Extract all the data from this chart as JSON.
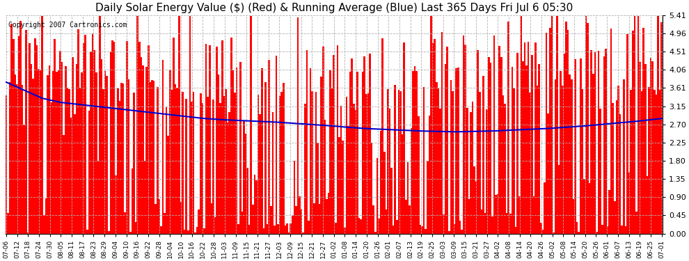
{
  "title": "Daily Solar Energy Value ($) (Red) & Running Average (Blue) Last 365 Days Fri Jul 6 05:30",
  "copyright": "Copyright 2007 Cartronics.com",
  "ylim": [
    0.0,
    5.41
  ],
  "yticks": [
    0.0,
    0.45,
    0.9,
    1.35,
    1.8,
    2.25,
    2.7,
    3.15,
    3.61,
    4.06,
    4.51,
    4.96,
    5.41
  ],
  "bar_color": "#ff0000",
  "avg_color": "#0000cc",
  "bg_color": "#ffffff",
  "grid_color": "#b0b0b0",
  "title_fontsize": 11,
  "copyright_fontsize": 7,
  "tick_labels": [
    "07-06",
    "07-12",
    "07-18",
    "07-24",
    "07-30",
    "08-05",
    "08-11",
    "08-17",
    "08-23",
    "08-29",
    "09-04",
    "09-10",
    "09-16",
    "09-22",
    "09-28",
    "10-04",
    "10-10",
    "10-16",
    "10-22",
    "10-28",
    "11-03",
    "11-09",
    "11-15",
    "11-21",
    "11-27",
    "12-03",
    "12-09",
    "12-15",
    "12-21",
    "12-27",
    "01-02",
    "01-08",
    "01-14",
    "01-20",
    "01-26",
    "02-01",
    "02-07",
    "02-13",
    "02-19",
    "02-25",
    "03-03",
    "03-09",
    "03-15",
    "03-21",
    "03-27",
    "04-02",
    "04-08",
    "04-14",
    "04-20",
    "04-26",
    "05-02",
    "05-08",
    "05-14",
    "05-20",
    "05-26",
    "06-01",
    "06-07",
    "06-13",
    "06-19",
    "06-25",
    "07-01"
  ],
  "avg_keypoints": [
    [
      0,
      3.75
    ],
    [
      10,
      3.55
    ],
    [
      20,
      3.35
    ],
    [
      30,
      3.25
    ],
    [
      40,
      3.2
    ],
    [
      50,
      3.15
    ],
    [
      60,
      3.1
    ],
    [
      70,
      3.05
    ],
    [
      80,
      3.0
    ],
    [
      90,
      2.95
    ],
    [
      100,
      2.9
    ],
    [
      110,
      2.85
    ],
    [
      120,
      2.82
    ],
    [
      130,
      2.8
    ],
    [
      140,
      2.78
    ],
    [
      150,
      2.76
    ],
    [
      160,
      2.73
    ],
    [
      170,
      2.7
    ],
    [
      180,
      2.67
    ],
    [
      190,
      2.63
    ],
    [
      200,
      2.6
    ],
    [
      210,
      2.58
    ],
    [
      220,
      2.56
    ],
    [
      230,
      2.54
    ],
    [
      240,
      2.53
    ],
    [
      250,
      2.52
    ],
    [
      260,
      2.53
    ],
    [
      270,
      2.54
    ],
    [
      280,
      2.56
    ],
    [
      290,
      2.58
    ],
    [
      300,
      2.6
    ],
    [
      310,
      2.63
    ],
    [
      320,
      2.66
    ],
    [
      330,
      2.7
    ],
    [
      340,
      2.74
    ],
    [
      350,
      2.78
    ],
    [
      364,
      2.85
    ]
  ]
}
